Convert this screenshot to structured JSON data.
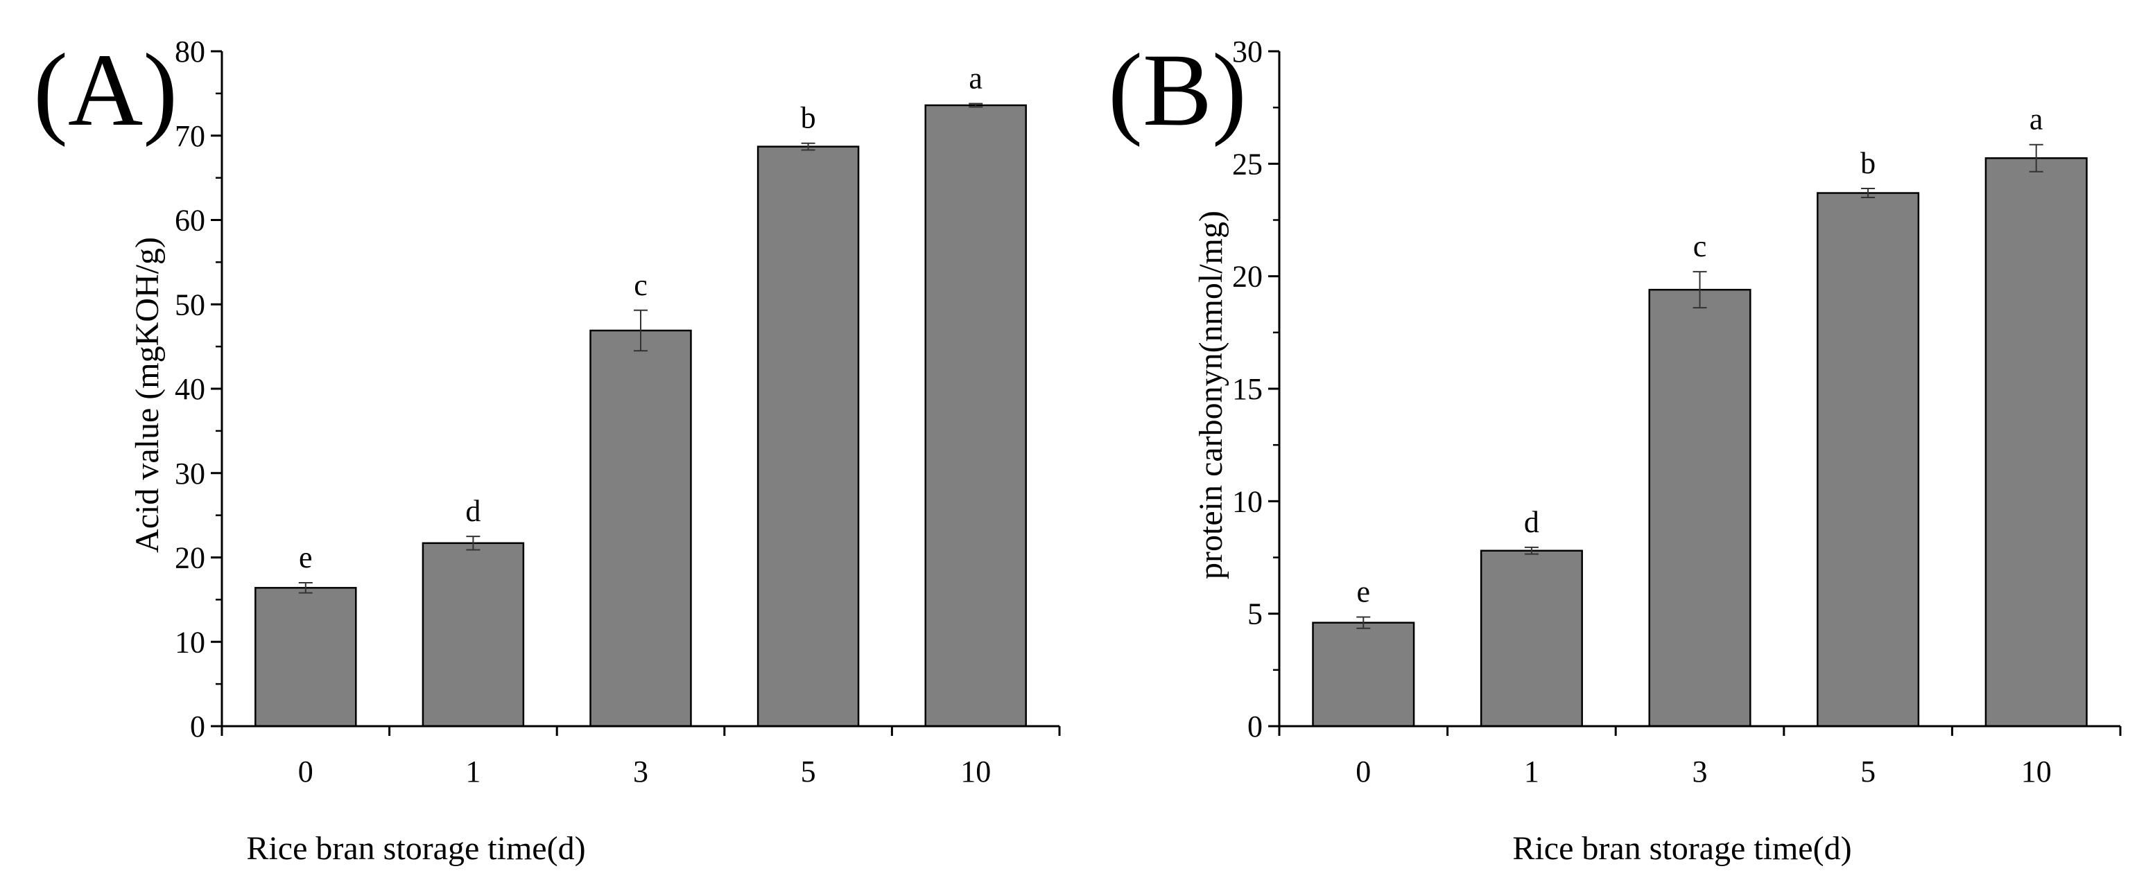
{
  "chart_data": [
    {
      "type": "bar",
      "panel_label": "(A)",
      "categories": [
        "0",
        "1",
        "3",
        "5",
        "10"
      ],
      "values": [
        16.4,
        21.7,
        46.9,
        68.7,
        73.6
      ],
      "errors": [
        0.6,
        0.8,
        2.4,
        0.4,
        0.2
      ],
      "significance_letters": [
        "e",
        "d",
        "c",
        "b",
        "a"
      ],
      "title": "",
      "xlabel": "Rice bran storage time(d)",
      "ylabel": "Acid value (mgKOH/g)",
      "ylim": [
        0,
        80
      ],
      "yticks": [
        0,
        10,
        20,
        30,
        40,
        50,
        60,
        70,
        80
      ],
      "bar_color": "#808080",
      "grid": false
    },
    {
      "type": "bar",
      "panel_label": "(B)",
      "categories": [
        "0",
        "1",
        "3",
        "5",
        "10"
      ],
      "values": [
        4.6,
        7.8,
        19.4,
        23.7,
        25.25
      ],
      "errors": [
        0.25,
        0.15,
        0.8,
        0.2,
        0.6
      ],
      "significance_letters": [
        "e",
        "d",
        "c",
        "b",
        "a"
      ],
      "title": "",
      "xlabel": "Rice bran storage time(d)",
      "ylabel": "protein carbonyn(nmol/mg)",
      "ylim": [
        0,
        30
      ],
      "yticks": [
        0,
        5,
        10,
        15,
        20,
        25,
        30
      ],
      "bar_color": "#808080",
      "grid": false
    }
  ]
}
